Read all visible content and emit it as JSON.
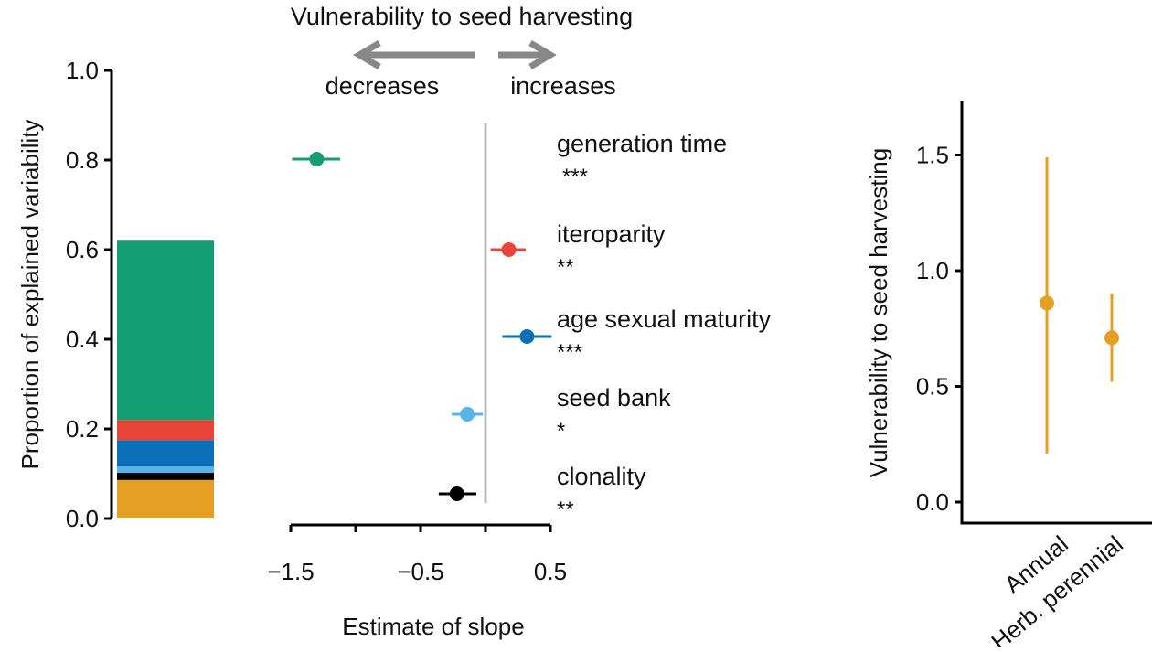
{
  "chart_data": [
    {
      "type": "bar",
      "subtype": "stacked",
      "ylabel": "Proportion of explained variability",
      "ylim": [
        0,
        1
      ],
      "yticks": [
        "0.0",
        "0.2",
        "0.4",
        "0.6",
        "0.8",
        "1.0"
      ],
      "segments": [
        {
          "name": "annual/perennial",
          "value": 0.086,
          "color": "#E69F25"
        },
        {
          "name": "clonality",
          "value": 0.016,
          "color": "#000000"
        },
        {
          "name": "seed bank",
          "value": 0.014,
          "color": "#56B4E9"
        },
        {
          "name": "age sexual maturity",
          "value": 0.059,
          "color": "#0A6FB7"
        },
        {
          "name": "iteroparity",
          "value": 0.045,
          "color": "#E8443A"
        },
        {
          "name": "generation time",
          "value": 0.4,
          "color": "#159E74"
        }
      ]
    },
    {
      "type": "scatter",
      "subtype": "forest",
      "title": "Vulnerability to seed harvesting",
      "left_label": "decreases",
      "right_label": "increases",
      "xlabel": "Estimate of slope",
      "xlim": [
        -1.5,
        0.5
      ],
      "xticks": [
        "−1.5",
        "−0.5",
        "0.5"
      ],
      "points": [
        {
          "label": "generation time",
          "sig": "***",
          "estimate": -1.3,
          "low": -1.49,
          "high": -1.12,
          "color": "#159E74"
        },
        {
          "label": "iteroparity",
          "sig": "**",
          "estimate": 0.18,
          "low": 0.04,
          "high": 0.31,
          "color": "#E8443A"
        },
        {
          "label": "age sexual maturity",
          "sig": "***",
          "estimate": 0.32,
          "low": 0.13,
          "high": 0.51,
          "color": "#0A6FB7"
        },
        {
          "label": "seed bank",
          "sig": "*",
          "estimate": -0.14,
          "low": -0.26,
          "high": -0.02,
          "color": "#56B4E9"
        },
        {
          "label": "clonality",
          "sig": "**",
          "estimate": -0.22,
          "low": -0.36,
          "high": -0.07,
          "color": "#000000"
        }
      ]
    },
    {
      "type": "scatter",
      "ylabel": "Vulnerability to seed harvesting",
      "ylim": [
        0,
        1.75
      ],
      "yticks": [
        "0.0",
        "0.5",
        "1.0",
        "1.5"
      ],
      "categories": [
        "Annual",
        "Herb. perennial"
      ],
      "points": [
        {
          "category": "Annual",
          "value": 0.86,
          "low": 0.21,
          "high": 1.49
        },
        {
          "category": "Herb. perennial",
          "value": 0.71,
          "low": 0.52,
          "high": 0.9
        }
      ],
      "color": "#E69F25"
    }
  ]
}
